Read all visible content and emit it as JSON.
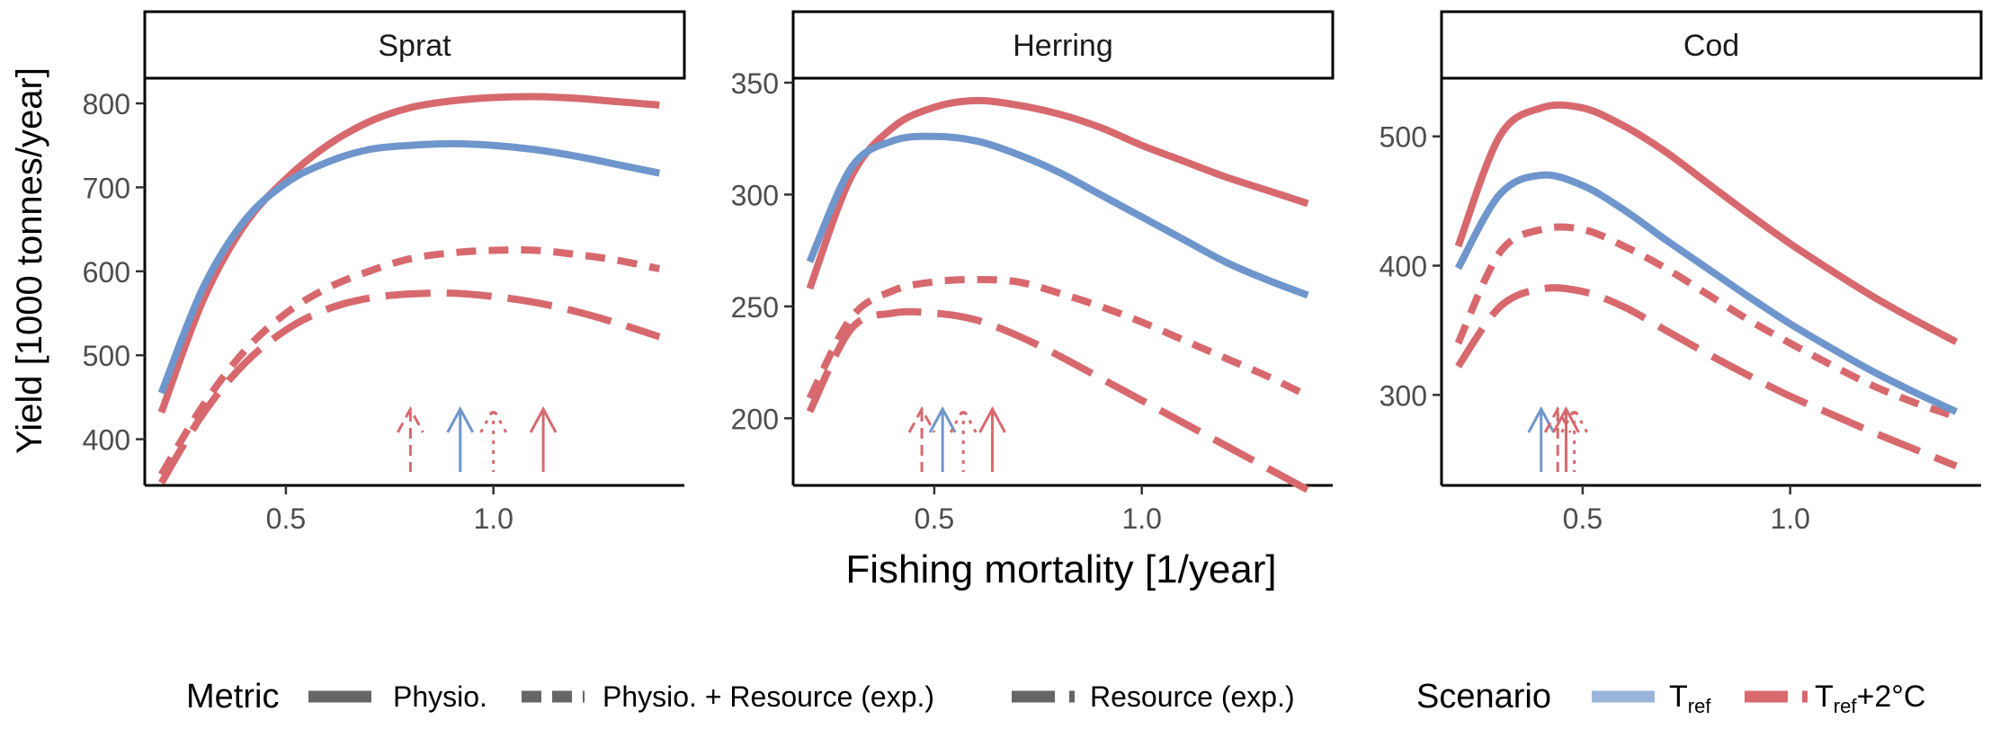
{
  "figure": {
    "y_axis_label": "Yield [1000 tonnes/year]",
    "x_axis_label": "Fishing mortality [1/year]"
  },
  "legend": {
    "metric_title": "Metric",
    "metric_items": [
      {
        "label": "Physio.",
        "linetype": "solid"
      },
      {
        "label": "Physio. + Resource (exp.)",
        "linetype": "dashed-short"
      },
      {
        "label": "Resource (exp.)",
        "linetype": "dashed-long"
      }
    ],
    "scenario_title": "Scenario",
    "scenario_items": [
      {
        "label_main": "T",
        "label_sub": "ref",
        "label_tail": "",
        "color": "#6F96CC"
      },
      {
        "label_main": "T",
        "label_sub": "ref",
        "label_tail": "+2°C",
        "color": "#D7696E"
      }
    ]
  },
  "colors": {
    "tref": "#6F96CC",
    "tref2": "#D7696E",
    "axis": "#000000",
    "tick_label": "#4D4D4D"
  },
  "chart_data": [
    {
      "type": "line",
      "title": "Sprat",
      "xlim": [
        0.16,
        1.46
      ],
      "ylim": [
        345,
        830
      ],
      "x_ticks": [
        0.5,
        1.0
      ],
      "x_tick_labels": [
        "0.5",
        "1.0"
      ],
      "y_ticks": [
        400,
        500,
        600,
        700,
        800
      ],
      "y_tick_labels": [
        "400",
        "500",
        "600",
        "700",
        "800"
      ],
      "x": [
        0.2,
        0.3,
        0.4,
        0.5,
        0.6,
        0.7,
        0.8,
        0.9,
        1.0,
        1.1,
        1.2,
        1.3,
        1.4
      ],
      "series": [
        {
          "scenario": "tref",
          "metric": "solid",
          "values": [
            455,
            580,
            660,
            705,
            730,
            745,
            750,
            752,
            750,
            745,
            737,
            727,
            717
          ]
        },
        {
          "scenario": "tref2",
          "metric": "solid",
          "values": [
            432,
            565,
            655,
            710,
            750,
            778,
            795,
            803,
            807,
            808,
            806,
            802,
            798
          ]
        },
        {
          "scenario": "tref2",
          "metric": "dashed-short",
          "values": [
            358,
            440,
            505,
            550,
            580,
            600,
            615,
            622,
            625,
            625,
            620,
            613,
            603
          ]
        },
        {
          "scenario": "tref2",
          "metric": "dashed-long",
          "values": [
            348,
            430,
            490,
            530,
            555,
            568,
            573,
            574,
            570,
            563,
            552,
            538,
            522
          ]
        }
      ],
      "arrows": [
        {
          "x": 0.8,
          "scenario": "tref2",
          "metric": "dashed-long"
        },
        {
          "x": 0.92,
          "scenario": "tref",
          "metric": "solid"
        },
        {
          "x": 1.0,
          "scenario": "tref2",
          "metric": "dashed-short"
        },
        {
          "x": 1.12,
          "scenario": "tref2",
          "metric": "solid"
        }
      ]
    },
    {
      "type": "line",
      "title": "Herring",
      "xlim": [
        0.16,
        1.46
      ],
      "ylim": [
        170,
        352
      ],
      "x_ticks": [
        0.5,
        1.0
      ],
      "x_tick_labels": [
        "0.5",
        "1.0"
      ],
      "y_ticks": [
        200,
        250,
        300,
        350
      ],
      "y_tick_labels": [
        "200",
        "250",
        "300",
        "350"
      ],
      "x": [
        0.2,
        0.3,
        0.4,
        0.5,
        0.6,
        0.7,
        0.8,
        0.9,
        1.0,
        1.1,
        1.2,
        1.3,
        1.4
      ],
      "series": [
        {
          "scenario": "tref",
          "metric": "solid",
          "values": [
            270,
            312,
            324,
            326,
            324,
            318,
            310,
            300,
            290,
            280,
            270,
            262,
            255
          ]
        },
        {
          "scenario": "tref2",
          "metric": "solid",
          "values": [
            258,
            308,
            330,
            339,
            342,
            340,
            336,
            330,
            322,
            315,
            308,
            302,
            296
          ]
        },
        {
          "scenario": "tref2",
          "metric": "dashed-short",
          "values": [
            209,
            245,
            257,
            261,
            262,
            261,
            256,
            250,
            243,
            235,
            227,
            219,
            210
          ]
        },
        {
          "scenario": "tref2",
          "metric": "dashed-long",
          "values": [
            203,
            240,
            247,
            247,
            244,
            237,
            228,
            218,
            208,
            198,
            188,
            178,
            168
          ]
        }
      ],
      "arrows": [
        {
          "x": 0.47,
          "scenario": "tref2",
          "metric": "dashed-long"
        },
        {
          "x": 0.52,
          "scenario": "tref",
          "metric": "solid"
        },
        {
          "x": 0.57,
          "scenario": "tref2",
          "metric": "dashed-short"
        },
        {
          "x": 0.64,
          "scenario": "tref2",
          "metric": "solid"
        }
      ]
    },
    {
      "type": "line",
      "title": "Cod",
      "xlim": [
        0.16,
        1.46
      ],
      "ylim": [
        230,
        545
      ],
      "x_ticks": [
        0.5,
        1.0
      ],
      "x_tick_labels": [
        "0.5",
        "1.0"
      ],
      "y_ticks": [
        300,
        400,
        500
      ],
      "y_tick_labels": [
        "300",
        "400",
        "500"
      ],
      "x": [
        0.2,
        0.3,
        0.4,
        0.5,
        0.6,
        0.7,
        0.8,
        0.9,
        1.0,
        1.1,
        1.2,
        1.3,
        1.4
      ],
      "series": [
        {
          "scenario": "tref",
          "metric": "solid",
          "values": [
            398,
            455,
            470,
            462,
            443,
            420,
            398,
            376,
            355,
            336,
            318,
            302,
            287
          ]
        },
        {
          "scenario": "tref2",
          "metric": "solid",
          "values": [
            415,
            500,
            522,
            522,
            508,
            488,
            464,
            440,
            417,
            396,
            376,
            358,
            341
          ]
        },
        {
          "scenario": "tref2",
          "metric": "dashed-short",
          "values": [
            340,
            410,
            428,
            428,
            415,
            398,
            378,
            358,
            340,
            323,
            307,
            294,
            283
          ]
        },
        {
          "scenario": "tref2",
          "metric": "dashed-long",
          "values": [
            322,
            368,
            382,
            380,
            368,
            350,
            332,
            315,
            299,
            285,
            271,
            258,
            245
          ]
        }
      ],
      "arrows": [
        {
          "x": 0.4,
          "scenario": "tref",
          "metric": "solid"
        },
        {
          "x": 0.44,
          "scenario": "tref2",
          "metric": "dashed-long"
        },
        {
          "x": 0.46,
          "scenario": "tref2",
          "metric": "solid"
        },
        {
          "x": 0.48,
          "scenario": "tref2",
          "metric": "dashed-short"
        }
      ]
    }
  ]
}
